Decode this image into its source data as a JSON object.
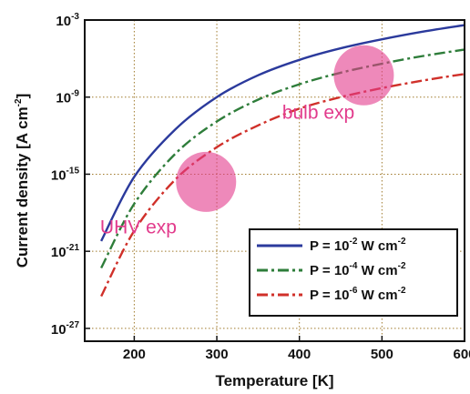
{
  "chart_data": {
    "type": "line",
    "xlabel": "Temperature [K]",
    "ylabel": "Current density [A cm",
    "ylabel_sup": "-2",
    "ylabel_end": "]",
    "x_scale": "linear",
    "y_scale": "log",
    "xlim": [
      140,
      600
    ],
    "ylim_exp": [
      -28,
      -3
    ],
    "x_ticks": [
      200,
      300,
      400,
      500,
      600
    ],
    "y_ticks": [
      {
        "base": "10",
        "exp": "-3",
        "value_exp": -3
      },
      {
        "base": "10",
        "exp": "-9",
        "value_exp": -9
      },
      {
        "base": "10",
        "exp": "-15",
        "value_exp": -15
      },
      {
        "base": "10",
        "exp": "-21",
        "value_exp": -21
      },
      {
        "base": "10",
        "exp": "-27",
        "value_exp": -27
      }
    ],
    "grid": true,
    "x": [
      160,
      200,
      250,
      300,
      350,
      400,
      450,
      500,
      550,
      600
    ],
    "series": [
      {
        "name_pre": "P = 10",
        "name_sup": "-2",
        "name_post": " W cm",
        "name_sup2": "-2",
        "color": "#2b3a9c",
        "style": "solid",
        "log10_values": [
          -20.2,
          -15.2,
          -11.5,
          -9.0,
          -7.3,
          -6.1,
          -5.2,
          -4.5,
          -3.9,
          -3.4
        ]
      },
      {
        "name_pre": "P = 10",
        "name_sup": "-4",
        "name_post": " W cm",
        "name_sup2": "-2",
        "color": "#2e7d3a",
        "style": "dashdot",
        "log10_values": [
          -22.3,
          -17.3,
          -13.4,
          -10.9,
          -9.2,
          -8.0,
          -7.1,
          -6.4,
          -5.8,
          -5.3
        ]
      },
      {
        "name_pre": "P = 10",
        "name_sup": "-6",
        "name_post": " W cm",
        "name_sup2": "-2",
        "color": "#d0302a",
        "style": "dashdot",
        "log10_values": [
          -24.5,
          -19.4,
          -15.4,
          -12.9,
          -11.2,
          -9.9,
          -9.0,
          -8.3,
          -7.7,
          -7.2
        ]
      }
    ],
    "legend_position": "lower-right",
    "annotations": [
      {
        "text": "UHV exp",
        "color": "#e23b8c",
        "marker_x": 287,
        "marker_log10": -15.6,
        "label_x": 205,
        "label_log10": -19.6
      },
      {
        "text": "bulb exp",
        "color": "#e23b8c",
        "marker_x": 478,
        "marker_log10": -7.3,
        "label_x": 423,
        "label_log10": -10.7
      }
    ]
  }
}
